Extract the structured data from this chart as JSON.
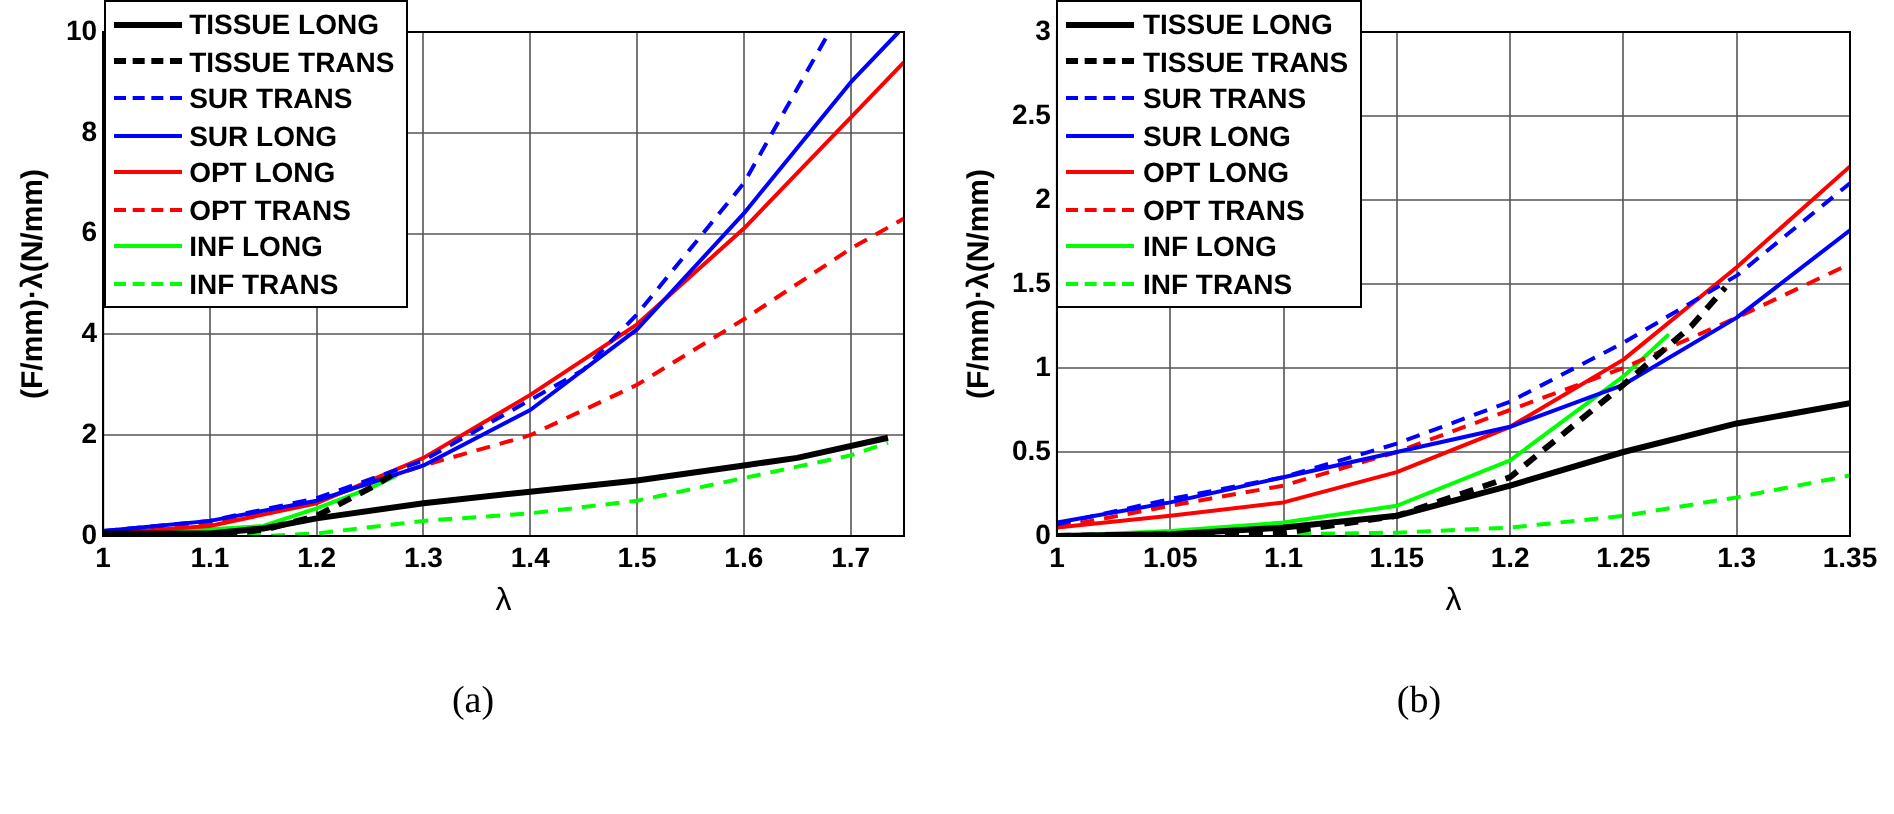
{
  "chart_data": [
    {
      "type": "line",
      "xlabel": "λ",
      "ylabel": "(F/mm)·λ(N/mm)",
      "xlim": [
        1,
        1.75
      ],
      "xticks": [
        1,
        1.1,
        1.2,
        1.3,
        1.4,
        1.5,
        1.6,
        1.7
      ],
      "ylim": [
        0,
        10
      ],
      "yticks": [
        0,
        2,
        4,
        6,
        8,
        10
      ],
      "grid": true,
      "legend": "top left",
      "annotations": [
        "(a)"
      ],
      "series": [
        {
          "name": "TISSUE LONG",
          "color": "#000000",
          "line_style": "solid",
          "x": [
            1,
            1.1,
            1.15,
            1.2,
            1.3,
            1.4,
            1.5,
            1.6,
            1.65,
            1.735
          ],
          "values": [
            0.05,
            0.05,
            0.15,
            0.35,
            0.65,
            0.88,
            1.1,
            1.4,
            1.55,
            1.95
          ]
        },
        {
          "name": "TISSUE TRANS",
          "color": "#000000",
          "line_style": "dashed",
          "x": [
            1,
            1.1,
            1.15,
            1.2,
            1.25,
            1.27
          ],
          "values": [
            0,
            0.02,
            0.12,
            0.4,
            0.95,
            1.2
          ]
        },
        {
          "name": "SUR TRANS",
          "color": "#0000ff",
          "line_style": "dashed",
          "x": [
            1,
            1.1,
            1.2,
            1.3,
            1.4,
            1.45,
            1.5,
            1.6,
            1.68
          ],
          "values": [
            0.1,
            0.3,
            0.75,
            1.5,
            2.7,
            3.3,
            4.4,
            7.0,
            10
          ]
        },
        {
          "name": "SUR LONG",
          "color": "#0000ff",
          "line_style": "solid",
          "x": [
            1,
            1.1,
            1.2,
            1.3,
            1.4,
            1.5,
            1.6,
            1.7,
            1.745
          ],
          "values": [
            0.1,
            0.3,
            0.7,
            1.4,
            2.5,
            4.1,
            6.4,
            9.0,
            10
          ]
        },
        {
          "name": "OPT LONG",
          "color": "#ff0000",
          "line_style": "solid",
          "x": [
            1,
            1.1,
            1.2,
            1.3,
            1.4,
            1.5,
            1.6,
            1.7,
            1.75
          ],
          "values": [
            0.05,
            0.2,
            0.65,
            1.55,
            2.8,
            4.2,
            6.1,
            8.3,
            9.4
          ]
        },
        {
          "name": "OPT TRANS",
          "color": "#ff0000",
          "line_style": "dashed",
          "x": [
            1,
            1.1,
            1.2,
            1.3,
            1.4,
            1.5,
            1.6,
            1.7,
            1.75
          ],
          "values": [
            0.05,
            0.25,
            0.7,
            1.4,
            2.0,
            3.0,
            4.3,
            5.7,
            6.3
          ]
        },
        {
          "name": "INF LONG",
          "color": "#00ff00",
          "line_style": "solid",
          "x": [
            1,
            1.15,
            1.2,
            1.25,
            1.275
          ],
          "values": [
            0,
            0.2,
            0.55,
            0.95,
            1.2
          ]
        },
        {
          "name": "INF TRANS",
          "color": "#00ff00",
          "line_style": "dashed",
          "x": [
            1,
            1.15,
            1.2,
            1.3,
            1.4,
            1.5,
            1.6,
            1.7,
            1.735
          ],
          "values": [
            0,
            0,
            0.05,
            0.3,
            0.45,
            0.7,
            1.15,
            1.6,
            1.85
          ]
        }
      ]
    },
    {
      "type": "line",
      "xlabel": "λ",
      "ylabel": "(F/mm)·λ(N/mm)",
      "xlim": [
        1,
        1.35
      ],
      "xticks": [
        1,
        1.05,
        1.1,
        1.15,
        1.2,
        1.25,
        1.3,
        1.35
      ],
      "ylim": [
        0,
        3
      ],
      "yticks": [
        0,
        0.5,
        1,
        1.5,
        2,
        2.5,
        3
      ],
      "grid": true,
      "legend": "top left",
      "annotations": [
        "(b)"
      ],
      "series": [
        {
          "name": "TISSUE LONG",
          "color": "#000000",
          "line_style": "solid",
          "x": [
            1,
            1.05,
            1.1,
            1.15,
            1.2,
            1.25,
            1.3,
            1.35
          ],
          "values": [
            0,
            0.01,
            0.05,
            0.12,
            0.3,
            0.5,
            0.67,
            0.79
          ]
        },
        {
          "name": "TISSUE TRANS",
          "color": "#000000",
          "line_style": "dashed",
          "x": [
            1,
            1.1,
            1.15,
            1.2,
            1.25,
            1.28,
            1.295
          ],
          "values": [
            0,
            0.02,
            0.12,
            0.35,
            0.9,
            1.25,
            1.48
          ]
        },
        {
          "name": "SUR TRANS",
          "color": "#0000ff",
          "line_style": "dashed",
          "x": [
            1,
            1.05,
            1.1,
            1.15,
            1.2,
            1.25,
            1.3,
            1.35
          ],
          "values": [
            0.07,
            0.22,
            0.35,
            0.55,
            0.8,
            1.15,
            1.55,
            2.1
          ]
        },
        {
          "name": "SUR LONG",
          "color": "#0000ff",
          "line_style": "solid",
          "x": [
            1,
            1.05,
            1.1,
            1.15,
            1.2,
            1.25,
            1.3,
            1.35
          ],
          "values": [
            0.08,
            0.2,
            0.35,
            0.5,
            0.65,
            0.9,
            1.3,
            1.82
          ]
        },
        {
          "name": "OPT LONG",
          "color": "#ff0000",
          "line_style": "solid",
          "x": [
            1,
            1.05,
            1.1,
            1.15,
            1.2,
            1.25,
            1.3,
            1.35
          ],
          "values": [
            0.05,
            0.12,
            0.2,
            0.38,
            0.65,
            1.05,
            1.6,
            2.2
          ]
        },
        {
          "name": "OPT TRANS",
          "color": "#ff0000",
          "line_style": "dashed",
          "x": [
            1,
            1.05,
            1.1,
            1.15,
            1.2,
            1.25,
            1.3,
            1.35
          ],
          "values": [
            0.05,
            0.18,
            0.3,
            0.5,
            0.75,
            1.0,
            1.3,
            1.62
          ]
        },
        {
          "name": "INF LONG",
          "color": "#00ff00",
          "line_style": "solid",
          "x": [
            1,
            1.05,
            1.1,
            1.15,
            1.2,
            1.25,
            1.27
          ],
          "values": [
            0,
            0.03,
            0.08,
            0.18,
            0.45,
            0.95,
            1.2
          ]
        },
        {
          "name": "INF TRANS",
          "color": "#00ff00",
          "line_style": "dashed",
          "x": [
            1,
            1.1,
            1.15,
            1.2,
            1.25,
            1.3,
            1.35
          ],
          "values": [
            0,
            0.01,
            0.02,
            0.05,
            0.12,
            0.23,
            0.36
          ]
        }
      ]
    }
  ]
}
